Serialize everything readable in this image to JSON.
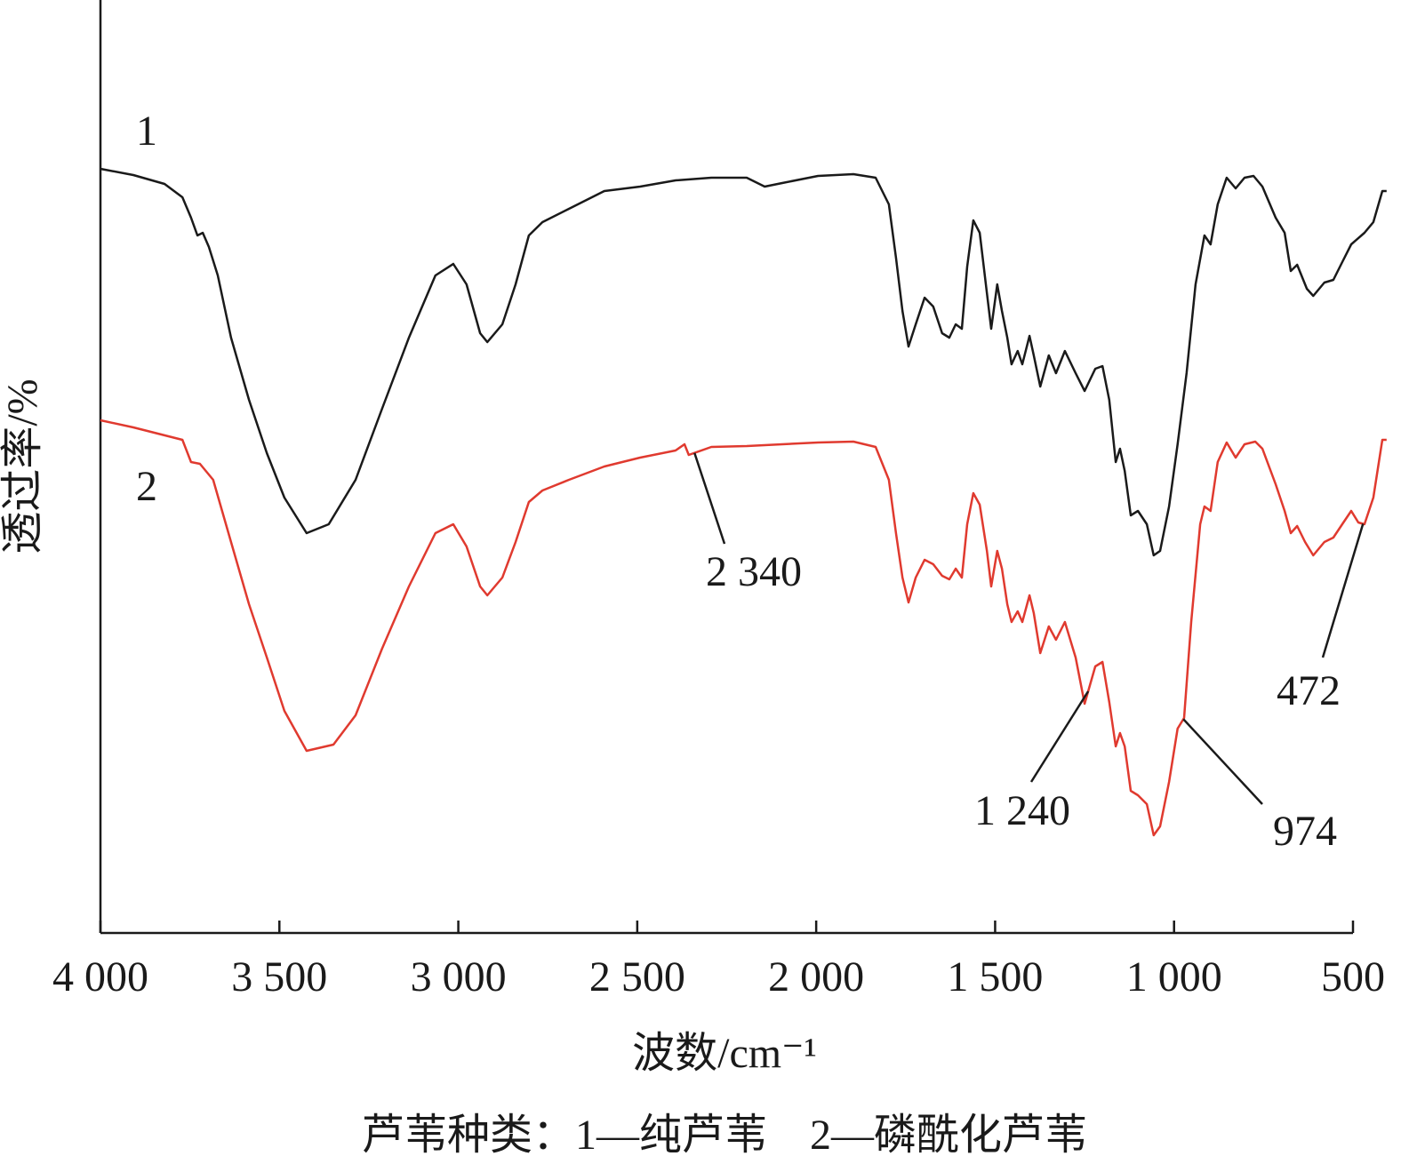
{
  "chart_data": {
    "type": "line",
    "x_label": "波数/cm⁻¹",
    "y_label": "透过率/%",
    "caption": "芦苇种类：1—纯芦苇　2—磷酰化芦苇",
    "xlim": [
      4000,
      500
    ],
    "ylim": [
      0,
      105
    ],
    "xticks": [
      {
        "value": 4000,
        "label": "4 000"
      },
      {
        "value": 3500,
        "label": "3 500"
      },
      {
        "value": 3000,
        "label": "3 000"
      },
      {
        "value": 2500,
        "label": "2 500"
      },
      {
        "value": 2000,
        "label": "2 000"
      },
      {
        "value": 1500,
        "label": "1 500"
      },
      {
        "value": 1000,
        "label": "1 000"
      },
      500
    ],
    "series": [
      {
        "name": "1",
        "color": "#1a1a1a",
        "x": [
          4000,
          3908,
          3821,
          3771,
          3747,
          3729,
          3714,
          3697,
          3672,
          3635,
          3585,
          3535,
          3486,
          3424,
          3362,
          3287,
          3213,
          3138,
          3064,
          3014,
          2977,
          2939,
          2919,
          2877,
          2840,
          2803,
          2765,
          2691,
          2592,
          2492,
          2393,
          2293,
          2194,
          2144,
          2095,
          1995,
          1896,
          1834,
          1797,
          1777,
          1759,
          1742,
          1722,
          1697,
          1673,
          1648,
          1628,
          1610,
          1593,
          1578,
          1561,
          1543,
          1523,
          1511,
          1494,
          1481,
          1466,
          1454,
          1437,
          1424,
          1404,
          1392,
          1374,
          1350,
          1330,
          1305,
          1275,
          1250,
          1220,
          1200,
          1181,
          1163,
          1151,
          1138,
          1121,
          1101,
          1076,
          1057,
          1039,
          1014,
          990,
          965,
          940,
          915,
          898,
          878,
          853,
          828,
          803,
          778,
          753,
          716,
          691,
          674,
          656,
          629,
          611,
          580,
          555,
          530,
          505,
          468,
          443,
          418,
          406
        ],
        "values": [
          86.0,
          85.3,
          84.3,
          82.8,
          80.5,
          78.5,
          78.8,
          77.2,
          74,
          67,
          60,
          54,
          49,
          45,
          46,
          51,
          59,
          67,
          74,
          75.3,
          73,
          67.5,
          66.5,
          68.5,
          73,
          78.5,
          80,
          81.5,
          83.5,
          84,
          84.7,
          85,
          85,
          84,
          84.4,
          85.2,
          85.4,
          85,
          82,
          76,
          70,
          66,
          68.5,
          71.5,
          70.5,
          67.5,
          67,
          68.5,
          68,
          75,
          80.2,
          78.8,
          72,
          68,
          73,
          70,
          67,
          64,
          65.5,
          64,
          67.2,
          65,
          61.5,
          65,
          63,
          65.5,
          63,
          61,
          63.5,
          63.8,
          60,
          53,
          54.5,
          52,
          47,
          47.5,
          46,
          42.5,
          43,
          48,
          55,
          63,
          73,
          78.5,
          77.5,
          82,
          85,
          83.8,
          85,
          85.2,
          84,
          80.5,
          78.8,
          74.5,
          75.2,
          72.5,
          71.7,
          73.2,
          73.5,
          75.5,
          77.5,
          78.8,
          80,
          83.5,
          83.5
        ]
      },
      {
        "name": "2",
        "color": "#e03a2f",
        "x": [
          4000,
          3908,
          3771,
          3747,
          3722,
          3685,
          3635,
          3585,
          3535,
          3486,
          3424,
          3349,
          3287,
          3213,
          3138,
          3064,
          3014,
          2977,
          2939,
          2919,
          2877,
          2840,
          2803,
          2765,
          2691,
          2592,
          2492,
          2393,
          2368,
          2356,
          2293,
          2194,
          2095,
          1995,
          1896,
          1834,
          1797,
          1777,
          1759,
          1742,
          1722,
          1697,
          1673,
          1648,
          1628,
          1610,
          1593,
          1578,
          1561,
          1543,
          1523,
          1511,
          1494,
          1481,
          1466,
          1454,
          1437,
          1424,
          1404,
          1392,
          1374,
          1350,
          1330,
          1305,
          1275,
          1250,
          1220,
          1200,
          1181,
          1163,
          1151,
          1138,
          1121,
          1101,
          1076,
          1057,
          1039,
          1014,
          990,
          972,
          952,
          927,
          915,
          898,
          878,
          853,
          828,
          803,
          773,
          753,
          716,
          691,
          674,
          656,
          634,
          611,
          580,
          555,
          530,
          505,
          485,
          468,
          443,
          418,
          406
        ],
        "values": [
          57.7,
          56.9,
          55.5,
          53,
          52.8,
          51,
          44,
          37,
          31,
          25,
          20.5,
          21.2,
          24.5,
          32,
          39,
          45,
          46,
          43.5,
          39,
          38,
          40,
          44,
          48.5,
          49.8,
          51,
          52.5,
          53.5,
          54.3,
          55,
          53.8,
          54.7,
          54.8,
          55,
          55.2,
          55.3,
          54.7,
          51,
          45,
          40,
          37.2,
          40,
          42,
          41.5,
          40.2,
          39.8,
          41,
          40,
          46,
          49.5,
          48.2,
          43,
          39,
          43,
          41,
          37,
          35,
          36.2,
          35,
          38,
          36,
          31.5,
          34.5,
          33,
          35,
          31,
          25.8,
          30,
          30.5,
          26,
          21,
          22.5,
          21,
          16,
          15.5,
          14.5,
          11,
          12,
          17,
          23,
          24.2,
          35,
          46,
          48,
          47.5,
          53,
          55.2,
          53.5,
          55,
          55.3,
          54.5,
          50.5,
          47.5,
          45,
          45.8,
          44,
          42.5,
          44,
          44.5,
          46,
          47.5,
          46.2,
          46,
          49,
          55.5,
          55.5
        ]
      }
    ],
    "annotations": [
      {
        "text": "2 340",
        "x": 2340
      },
      {
        "text": "1 240",
        "x": 1240
      },
      {
        "text": "974",
        "x": 974
      },
      {
        "text": "472",
        "x": 472
      }
    ]
  }
}
